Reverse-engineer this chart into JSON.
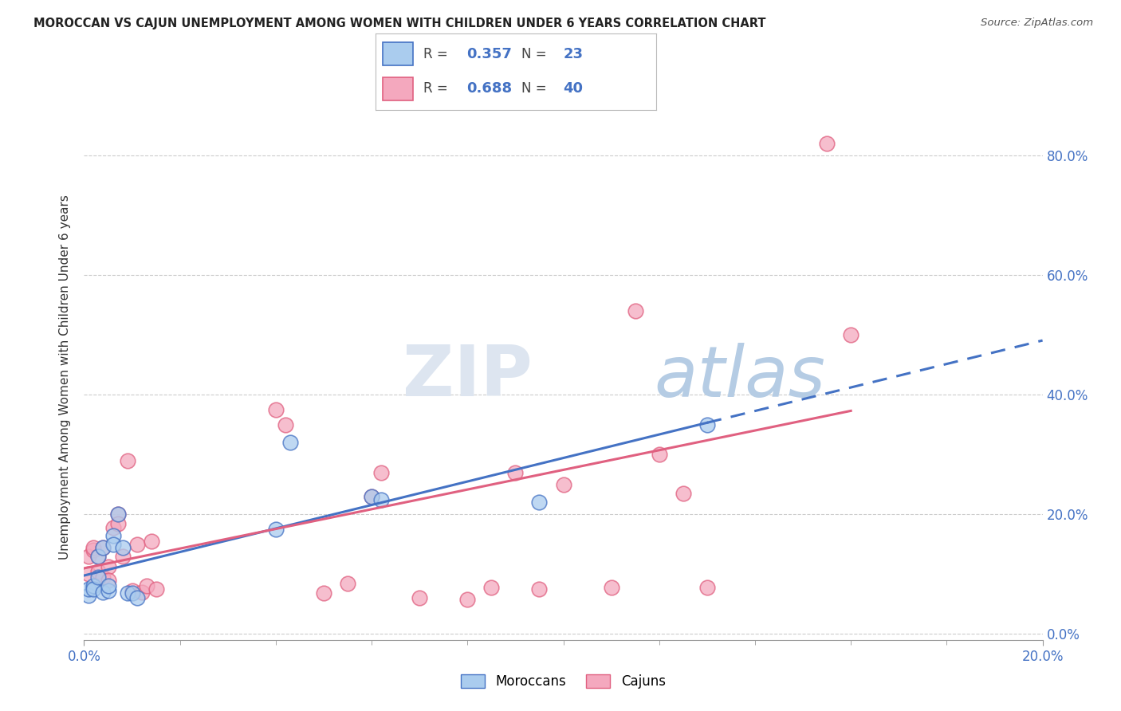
{
  "title": "MOROCCAN VS CAJUN UNEMPLOYMENT AMONG WOMEN WITH CHILDREN UNDER 6 YEARS CORRELATION CHART",
  "source": "Source: ZipAtlas.com",
  "ylabel": "Unemployment Among Women with Children Under 6 years",
  "moroccan_R": 0.357,
  "moroccan_N": 23,
  "cajun_R": 0.688,
  "cajun_N": 40,
  "moroccan_color": "#aaccee",
  "cajun_color": "#f4a8be",
  "moroccan_line_color": "#4472c4",
  "cajun_line_color": "#e06080",
  "background_color": "#ffffff",
  "grid_color": "#cccccc",
  "x_min": 0.0,
  "x_max": 0.2,
  "y_min": -0.01,
  "y_max": 0.87,
  "x_ticks": [
    0.0,
    0.2
  ],
  "x_minor_ticks": [
    0.02,
    0.04,
    0.06,
    0.08,
    0.1,
    0.12,
    0.14,
    0.16,
    0.18
  ],
  "y_ticks": [
    0.0,
    0.2,
    0.4,
    0.6,
    0.8
  ],
  "moroccan_x": [
    0.001,
    0.001,
    0.002,
    0.002,
    0.003,
    0.003,
    0.004,
    0.004,
    0.005,
    0.005,
    0.006,
    0.006,
    0.007,
    0.008,
    0.009,
    0.01,
    0.011,
    0.04,
    0.043,
    0.06,
    0.062,
    0.095,
    0.13
  ],
  "moroccan_y": [
    0.065,
    0.075,
    0.08,
    0.075,
    0.095,
    0.13,
    0.145,
    0.07,
    0.072,
    0.08,
    0.165,
    0.15,
    0.2,
    0.145,
    0.068,
    0.068,
    0.06,
    0.175,
    0.32,
    0.23,
    0.225,
    0.22,
    0.35
  ],
  "cajun_x": [
    0.001,
    0.001,
    0.002,
    0.002,
    0.003,
    0.003,
    0.004,
    0.004,
    0.005,
    0.005,
    0.006,
    0.007,
    0.007,
    0.008,
    0.009,
    0.01,
    0.011,
    0.012,
    0.013,
    0.014,
    0.015,
    0.04,
    0.042,
    0.05,
    0.055,
    0.06,
    0.062,
    0.07,
    0.08,
    0.085,
    0.09,
    0.1,
    0.11,
    0.115,
    0.12,
    0.125,
    0.13,
    0.155,
    0.16,
    0.095
  ],
  "cajun_y": [
    0.1,
    0.13,
    0.14,
    0.145,
    0.13,
    0.105,
    0.145,
    0.095,
    0.112,
    0.09,
    0.178,
    0.2,
    0.185,
    0.13,
    0.29,
    0.072,
    0.15,
    0.07,
    0.08,
    0.155,
    0.075,
    0.375,
    0.35,
    0.068,
    0.085,
    0.23,
    0.27,
    0.06,
    0.058,
    0.078,
    0.27,
    0.25,
    0.078,
    0.54,
    0.3,
    0.235,
    0.078,
    0.82,
    0.5,
    0.075
  ]
}
